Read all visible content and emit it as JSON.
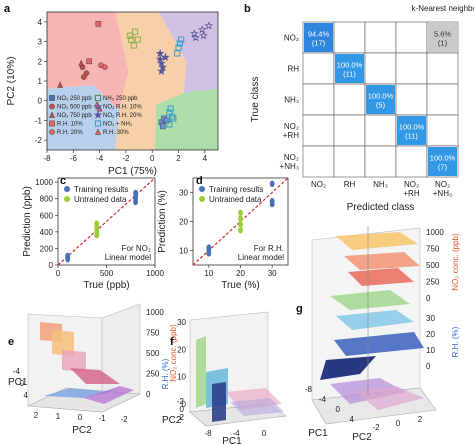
{
  "chart_data": [
    {
      "panel": "a",
      "type": "scatter",
      "xlabel": "PC1 (75%)",
      "ylabel": "PC2 (10%)",
      "xlim": [
        -8,
        5
      ],
      "ylim": [
        -2.5,
        4.5
      ],
      "xticks": [
        "-8",
        "-6",
        "-4",
        "-2",
        "0",
        "2",
        "4"
      ],
      "yticks": [
        "-2",
        "-1",
        "0",
        "1",
        "2",
        "3",
        "4"
      ],
      "region_colors": {
        "NO2 250 ppb": "#a9c7e6",
        "NO2 750 ppb": "#f4a7a4",
        "R.H. 20%": "#f6c79a",
        "NO2 + R.H.": "#c8b5dd",
        "NO2 + NH3": "#9fd79a"
      },
      "legend": [
        {
          "label": "NO₂ 250 ppb",
          "marker": "square",
          "color": "#4a6fb5"
        },
        {
          "label": "NH₃ 250 ppb",
          "marker": "square-open",
          "color": "#4d8b3a"
        },
        {
          "label": "NO₂ 500 ppb",
          "marker": "circle",
          "color": "#c0504d"
        },
        {
          "label": "NO₂ R.H. 10%",
          "marker": "star-open",
          "color": "#5a5a9a"
        },
        {
          "label": "NO₂ 750 ppb",
          "marker": "triangle",
          "color": "#c0504d"
        },
        {
          "label": "NO₂ R.H. 20%",
          "marker": "star",
          "color": "#5a5a9a"
        },
        {
          "label": "R.H. 10%",
          "marker": "square",
          "color": "#e06666"
        },
        {
          "label": "NO₂ + NH₃",
          "marker": "square-open",
          "color": "#3aa0c8"
        },
        {
          "label": "R.H. 20%",
          "marker": "circle",
          "color": "#e06666"
        },
        {
          "label": "R.H. 30%",
          "marker": "triangle",
          "color": "#e06666"
        }
      ],
      "series": [
        {
          "name": "NO₂ 250 ppb",
          "marker": "square",
          "color": "#6f8fd0",
          "points": [
            [
              0.7,
              -1.1
            ],
            [
              0.9,
              -0.9
            ],
            [
              0.8,
              -1.3
            ],
            [
              1.1,
              -1.0
            ]
          ]
        },
        {
          "name": "NO₂ 500 ppb",
          "marker": "circle",
          "color": "#c0504d",
          "points": [
            [
              -5.3,
              1.7
            ],
            [
              -5.0,
              1.4
            ],
            [
              -5.2,
              1.2
            ]
          ]
        },
        {
          "name": "NO₂ 750 ppb",
          "marker": "triangle",
          "color": "#c0504d",
          "points": [
            [
              -7.0,
              0.8
            ],
            [
              -5.4,
              1.9
            ]
          ]
        },
        {
          "name": "R.H. 10%",
          "marker": "square",
          "color": "#e06666",
          "points": [
            [
              -4.8,
              2.0
            ],
            [
              -4.1,
              3.9
            ]
          ]
        },
        {
          "name": "R.H. 20%",
          "marker": "circle",
          "color": "#e06666",
          "points": [
            [
              -3.6,
              1.7
            ],
            [
              -3.9,
              1.8
            ]
          ]
        },
        {
          "name": "R.H. 30%",
          "marker": "triangle",
          "color": "#e06666",
          "points": [
            [
              -4.2,
              -0.2
            ],
            [
              -4.0,
              -0.4
            ]
          ]
        },
        {
          "name": "NH₃ 250 ppb",
          "marker": "square-open",
          "color": "#8db04a",
          "points": [
            [
              -1.6,
              3.1
            ],
            [
              -1.4,
              2.8
            ],
            [
              -1.7,
              3.3
            ],
            [
              -1.3,
              3.5
            ],
            [
              -1.1,
              3.1
            ]
          ]
        },
        {
          "name": "NO₂ R.H. 10%",
          "marker": "star-open",
          "color": "#5a5a9a",
          "points": [
            [
              3.2,
              3.4
            ],
            [
              3.3,
              3.2
            ],
            [
              3.8,
              3.6
            ],
            [
              4.3,
              3.8
            ],
            [
              3.9,
              3.3
            ]
          ]
        },
        {
          "name": "NO₂ R.H. 20%",
          "marker": "star",
          "color": "#5a5a9a",
          "points": [
            [
              0.6,
              2.1
            ],
            [
              0.7,
              1.9
            ],
            [
              0.6,
              2.4
            ],
            [
              0.8,
              1.7
            ],
            [
              0.7,
              1.5
            ],
            [
              1.0,
              2.2
            ]
          ]
        },
        {
          "name": "NO₂ + NH₃",
          "marker": "square-open",
          "color": "#3aa0c8",
          "points": [
            [
              1.3,
              -0.6
            ],
            [
              1.5,
              -0.8
            ],
            [
              1.4,
              -0.4
            ],
            [
              1.6,
              -0.9
            ],
            [
              1.3,
              -1.2
            ],
            [
              1.9,
              2.4
            ],
            [
              2.0,
              2.7
            ],
            [
              2.1,
              2.9
            ],
            [
              2.2,
              3.1
            ]
          ]
        }
      ]
    },
    {
      "panel": "b",
      "type": "heatmap",
      "title": "k-Nearest neighbor",
      "xlabel": "Predicted class",
      "ylabel": "True class",
      "classes": [
        "NO₂",
        "RH",
        "NH₃",
        "NO₂\n+RH",
        "NO₂\n+NH₃"
      ],
      "cells": [
        {
          "row": 0,
          "col": 0,
          "pct": "94.4%",
          "n": "(17)",
          "color": "#2e86de"
        },
        {
          "row": 0,
          "col": 4,
          "pct": "5.6%",
          "n": "(1)",
          "color": "#c9c9c9"
        },
        {
          "row": 1,
          "col": 1,
          "pct": "100.0%",
          "n": "(11)",
          "color": "#3399e6"
        },
        {
          "row": 2,
          "col": 2,
          "pct": "100.0%",
          "n": "(5)",
          "color": "#3399e6"
        },
        {
          "row": 3,
          "col": 3,
          "pct": "100.0%",
          "n": "(11)",
          "color": "#3399e6"
        },
        {
          "row": 4,
          "col": 4,
          "pct": "100.0%",
          "n": "(7)",
          "color": "#3399e6"
        }
      ]
    },
    {
      "panel": "c",
      "type": "scatter",
      "xlabel": "True (ppb)",
      "ylabel": "Prediction (ppb)",
      "xlim": [
        0,
        1000
      ],
      "ylim": [
        0,
        1050
      ],
      "xticks": [
        "0",
        "500",
        "1000"
      ],
      "yticks": [
        "0",
        "200",
        "400",
        "600",
        "800",
        "1000"
      ],
      "note": "For NO₂\nLinear model",
      "legend": [
        "Training results",
        "Untrained data"
      ],
      "series": [
        {
          "name": "Training results",
          "color": "#4a6fb5",
          "x": [
            100,
            100,
            100,
            800,
            800,
            800,
            800,
            800
          ],
          "y": [
            70,
            90,
            110,
            760,
            800,
            820,
            840,
            870
          ]
        },
        {
          "name": "Untrained data",
          "color": "#9ccc3c",
          "x": [
            400,
            400,
            400,
            400,
            400
          ],
          "y": [
            360,
            400,
            430,
            460,
            500
          ]
        }
      ]
    },
    {
      "panel": "d",
      "type": "scatter",
      "xlabel": "True (%)",
      "ylabel": "Prediction (%)",
      "xlim": [
        5,
        35
      ],
      "ylim": [
        5,
        35
      ],
      "xticks": [
        "10",
        "20",
        "30"
      ],
      "yticks": [
        "10",
        "20",
        "30"
      ],
      "note": "For R.H.\nLinear model",
      "legend": [
        "Training results",
        "Untrained data"
      ],
      "series": [
        {
          "name": "Training results",
          "color": "#4a6fb5",
          "x": [
            10,
            10,
            10,
            30,
            30,
            30
          ],
          "y": [
            9,
            10,
            11,
            26,
            27,
            33
          ]
        },
        {
          "name": "Untrained data",
          "color": "#9ccc3c",
          "x": [
            20,
            20,
            20,
            20
          ],
          "y": [
            17,
            19,
            21,
            23
          ]
        }
      ]
    },
    {
      "panel": "e",
      "type": "surface3d",
      "zlabel": "NO₂ conc. (ppb)",
      "zticks": [
        "0",
        "250",
        "500",
        "750",
        "1000"
      ],
      "xlabel": "PC2",
      "ylabel": "PC1",
      "xticks": [
        "2",
        "1",
        "0",
        "-1",
        "-2"
      ],
      "yticks": [
        "-4",
        "0",
        "4"
      ]
    },
    {
      "panel": "f",
      "type": "surface3d",
      "zlabel": "R.H. (%)",
      "zticks": [
        "0",
        "10",
        "20",
        "30"
      ],
      "xlabel": "PC1",
      "ylabel": "PC2",
      "xticks": [
        "-8",
        "-4",
        "0"
      ],
      "yticks": [
        "-2",
        "0",
        "2"
      ]
    },
    {
      "panel": "g",
      "type": "surface3d",
      "zlabel_right": "NO₂ conc. (ppb)",
      "zticks_right": [
        "0",
        "250",
        "500",
        "750",
        "1000"
      ],
      "zlabel_right2": "R.H. (%)",
      "zticks_right2": [
        "0",
        "10",
        "20",
        "30"
      ],
      "xlabel": "PC1",
      "ylabel": "PC2",
      "xticks": [
        "-8",
        "-4",
        "0",
        "4"
      ],
      "yticks": [
        "-2",
        "0",
        "2"
      ]
    }
  ]
}
